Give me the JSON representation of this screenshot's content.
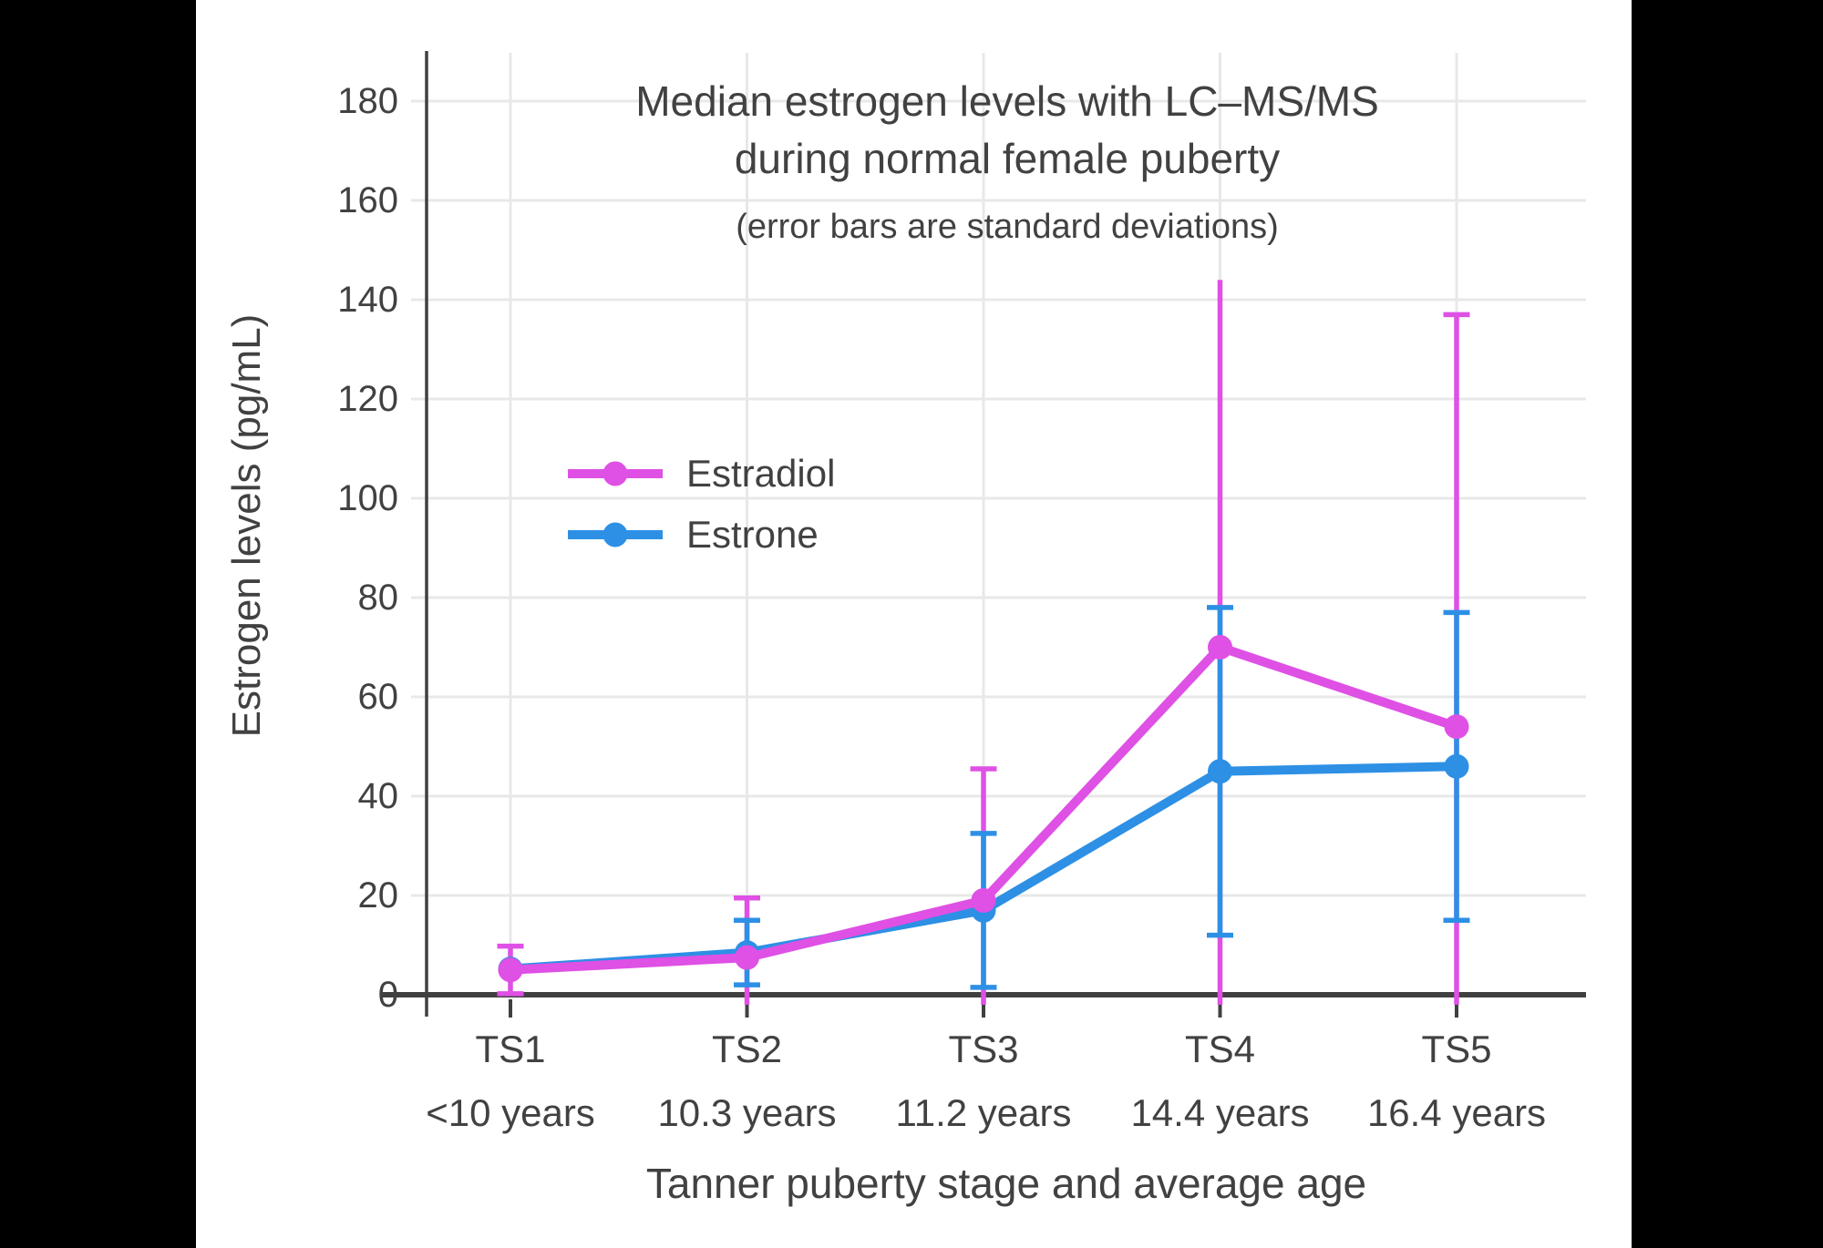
{
  "window": {
    "background": "#000000",
    "panel_background": "#ffffff"
  },
  "colors": {
    "estradiol": "#DF50E5",
    "estrone": "#2D90E5",
    "grid": "#E8E8E8",
    "axis": "#404040",
    "text": "#414141"
  },
  "chart_data": {
    "type": "line",
    "title": "Median estrogen levels with LC–MS/MS during normal female puberty",
    "title_lines": [
      "Median estrogen levels with LC–MS/MS",
      "during normal female puberty"
    ],
    "subtitle": "(error bars are standard deviations)",
    "xlabel": "Tanner puberty stage and average age",
    "ylabel": "Estrogen levels (pg/mL)",
    "categories": [
      "TS1",
      "TS2",
      "TS3",
      "TS4",
      "TS5"
    ],
    "category_ages": [
      "<10 years",
      "10.3 years",
      "11.2 years",
      "14.4 years",
      "16.4 years"
    ],
    "ylim": [
      0,
      190
    ],
    "yticks": [
      0,
      20,
      40,
      60,
      80,
      100,
      120,
      140,
      160,
      180
    ],
    "grid": true,
    "legend_position": "inside-upper-left",
    "error_bar_note": "error bars are standard deviations; bars extending below 0 are clipped at the x-axis",
    "series": [
      {
        "name": "Estradiol",
        "color": "#DF50E5",
        "values": [
          5,
          7.5,
          19,
          70,
          54
        ],
        "sd": [
          4.8,
          12,
          26.5,
          74,
          83
        ],
        "upper_caps": [
          true,
          true,
          true,
          false,
          true
        ]
      },
      {
        "name": "Estrone",
        "color": "#2D90E5",
        "values": [
          5.2,
          8.5,
          17,
          45,
          46
        ],
        "sd": [
          null,
          6.5,
          15.5,
          33,
          31
        ],
        "upper_caps": [
          false,
          true,
          true,
          true,
          true
        ]
      }
    ]
  }
}
